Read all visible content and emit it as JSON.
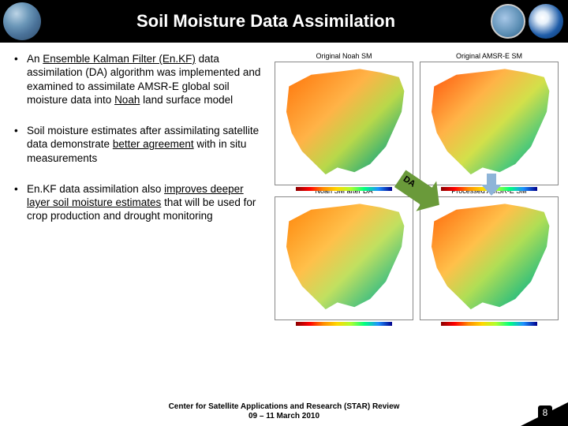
{
  "title": "Soil Moisture Data Assimilation",
  "bullets": {
    "b1_p1": "An ",
    "b1_u1": "Ensemble Kalman Filter (En.KF)",
    "b1_p2": " data assimilation (DA) algorithm was implemented and examined to assimilate AMSR-E global soil moisture data into ",
    "b1_u2": "Noah",
    "b1_p3": " land surface model",
    "b2_p1": "Soil moisture estimates after assimilating satellite data demonstrate ",
    "b2_u1": "better agreement",
    "b2_p2": " with in situ measurements",
    "b3_p1": "En.KF data assimilation also ",
    "b3_u1": "improves deeper layer soil moisture estimates",
    "b3_p2": " that will be used for crop production and drought monitoring"
  },
  "maps": {
    "tl_label": "Original Noah SM",
    "tr_label": "Original AMSR-E SM",
    "bl_label": "Noah SM after DA",
    "br_label": "Processed AMSR-E SM"
  },
  "da_label": "DA",
  "footer_l1": "Center for Satellite Applications and Research (STAR) Review",
  "footer_l2": "09 – 11 March 2010",
  "page_num": "8",
  "colors": {
    "header_bg": "#000000",
    "title_color": "#ffffff",
    "text_color": "#000000",
    "da_arrow": "#6a9a3a",
    "down_arrow": "#8eb4d8"
  }
}
